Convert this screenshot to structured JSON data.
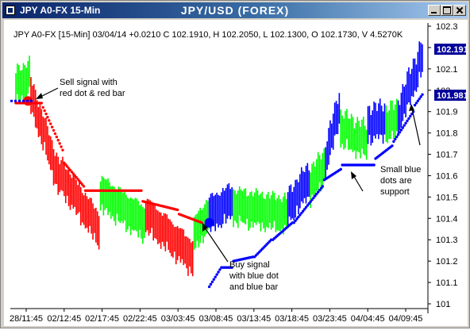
{
  "window": {
    "title": "JPY A0-FX 15-Min",
    "chart_title": "JPY/USD (FOREX)"
  },
  "info_line": "JPY A0-FX [15-Min] 03/04/14 +0.0210 C 102.1910, H 102.2050, L 102.1300, O 102.1730, V 4.5270K",
  "annotations": {
    "sell": [
      "Sell signal with",
      "red dot & red bar"
    ],
    "buy": [
      "Buy signal",
      "with blue dot",
      "and blue bar"
    ],
    "support": [
      "Small blue",
      "dots are",
      "support"
    ]
  },
  "price_tags": {
    "close": "102.191",
    "sar": "101.981"
  },
  "colors": {
    "up_bar": "#00ff00",
    "down_bar": "#ff0000",
    "buy_bar": "#0000ff",
    "sell_dot": "#ff0000",
    "support_dot": "#0000ff",
    "tag_background": "#000099"
  },
  "chart_data": {
    "type": "bar",
    "title": "JPY/USD (FOREX)",
    "xlabel": "",
    "ylabel": "",
    "ylim": [
      101.0,
      102.3
    ],
    "grid": false,
    "x_tick_labels": [
      "28/11:45",
      "02/12:45",
      "02/17:45",
      "02/22:45",
      "03/03:45",
      "03/08:45",
      "03/13:45",
      "03/18:45",
      "03/23:45",
      "04/04:45",
      "04/09:45"
    ],
    "y_ticks": [
      101,
      101.1,
      101.2,
      101.3,
      101.4,
      101.5,
      101.6,
      101.7,
      101.8,
      101.9,
      102,
      102.1,
      102.2,
      102.3
    ],
    "bar_colors": [
      "green",
      "red",
      "blue"
    ],
    "segments": [
      {
        "start": 0,
        "n": 10,
        "color": "green",
        "from": 102.02,
        "to": 102.06
      },
      {
        "start": 10,
        "n": 20,
        "color": "red",
        "from": 101.98,
        "to": 101.58
      },
      {
        "start": 30,
        "n": 26,
        "color": "red",
        "from": 101.6,
        "to": 101.35
      },
      {
        "start": 56,
        "n": 30,
        "color": "green",
        "from": 101.52,
        "to": 101.38
      },
      {
        "start": 86,
        "n": 32,
        "color": "red",
        "from": 101.42,
        "to": 101.22
      },
      {
        "start": 118,
        "n": 10,
        "color": "green",
        "from": 101.32,
        "to": 101.42
      },
      {
        "start": 128,
        "n": 16,
        "color": "blue",
        "from": 101.42,
        "to": 101.48
      },
      {
        "start": 144,
        "n": 36,
        "color": "green",
        "from": 101.46,
        "to": 101.42
      },
      {
        "start": 180,
        "n": 15,
        "color": "blue",
        "from": 101.45,
        "to": 101.58
      },
      {
        "start": 195,
        "n": 10,
        "color": "green",
        "from": 101.56,
        "to": 101.64
      },
      {
        "start": 205,
        "n": 10,
        "color": "blue",
        "from": 101.68,
        "to": 101.92
      },
      {
        "start": 215,
        "n": 18,
        "color": "green",
        "from": 101.82,
        "to": 101.76
      },
      {
        "start": 233,
        "n": 12,
        "color": "blue",
        "from": 101.84,
        "to": 101.86
      },
      {
        "start": 245,
        "n": 8,
        "color": "green",
        "from": 101.84,
        "to": 101.86
      },
      {
        "start": 253,
        "n": 17,
        "color": "blue",
        "from": 101.88,
        "to": 102.16
      }
    ],
    "support_dots": [
      {
        "start": 128,
        "n": 8,
        "from": 101.08,
        "to": 101.16
      },
      {
        "start": 136,
        "n": 8,
        "from": 101.17,
        "to": 101.17
      },
      {
        "start": 144,
        "n": 14,
        "from": 101.2,
        "to": 101.22
      },
      {
        "start": 158,
        "n": 12,
        "from": 101.22,
        "to": 101.3
      },
      {
        "start": 170,
        "n": 14,
        "from": 101.3,
        "to": 101.38
      },
      {
        "start": 184,
        "n": 20,
        "from": 101.38,
        "to": 101.55
      },
      {
        "start": 204,
        "n": 12,
        "from": 101.58,
        "to": 101.63
      },
      {
        "start": 216,
        "n": 22,
        "from": 101.65,
        "to": 101.65
      },
      {
        "start": 238,
        "n": 12,
        "from": 101.68,
        "to": 101.74
      },
      {
        "start": 250,
        "n": 14,
        "from": 101.76,
        "to": 101.9
      },
      {
        "start": 264,
        "n": 6,
        "from": 101.93,
        "to": 101.98
      }
    ],
    "resistance_dots": [
      {
        "start": 0,
        "n": 8,
        "from": 101.94,
        "to": 101.94
      },
      {
        "start": 8,
        "n": 10,
        "from": 101.94,
        "to": 101.94
      },
      {
        "start": 18,
        "n": 14,
        "from": 101.92,
        "to": 101.72
      },
      {
        "start": 32,
        "n": 14,
        "from": 101.66,
        "to": 101.55
      },
      {
        "start": 46,
        "n": 38,
        "from": 101.53,
        "to": 101.53
      },
      {
        "start": 84,
        "n": 24,
        "from": 101.48,
        "to": 101.44
      },
      {
        "start": 108,
        "n": 16,
        "from": 101.42,
        "to": 101.38
      }
    ],
    "sell_signal": {
      "bar_index": 8,
      "price": 101.95
    },
    "buy_signal": {
      "bar_index": 128,
      "price": 101.38
    },
    "total_bars": 270
  }
}
